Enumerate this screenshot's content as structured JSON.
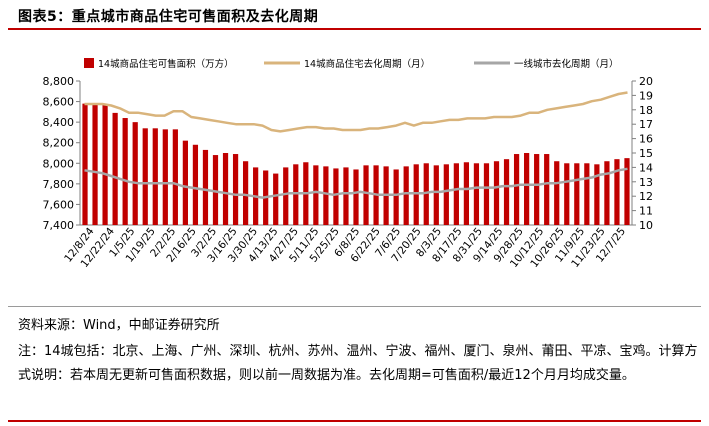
{
  "title": "图表5：重点城市商品住宅可售面积及去化周期",
  "source": "资料来源：Wind，中邮证券研究所",
  "note": "注：14城包括：北京、上海、广州、深圳、杭州、苏州、温州、宁波、福州、厦门、泉州、莆田、平凉、宝鸡。计算方式说明：若本周无更新可售面积数据，则以前一周数据为准。去化周期=可售面积/最近12个月月均成交量。",
  "colors": {
    "bar": "#c00000",
    "line1": "#d9b47c",
    "line2": "#a6a6a6",
    "accent": "#c00000"
  },
  "chart_data": {
    "type": "bar",
    "legend": [
      "14城商品住宅可售面积（万方）",
      "14城商品住宅去化周期（月）",
      "一线城市去化周期（月）"
    ],
    "legend_placement": "top",
    "x_tick_labels": [
      "12/8/24",
      "12/22/24",
      "1/5/25",
      "1/19/25",
      "2/2/25",
      "2/16/25",
      "3/2/25",
      "3/16/25",
      "3/30/25",
      "4/13/25",
      "4/27/25",
      "5/11/25",
      "5/25/25",
      "6/8/25",
      "6/22/25",
      "7/6/25",
      "7/20/25",
      "8/3/25",
      "8/17/25",
      "8/31/25",
      "9/14/25",
      "9/28/25",
      "10/12/25",
      "10/26/25",
      "11/9/25",
      "11/23/25",
      "12/7/25"
    ],
    "y_left": {
      "min": 7400,
      "max": 8800,
      "step": 200,
      "tick_labels": [
        "7,400",
        "7,600",
        "7,800",
        "8,000",
        "8,200",
        "8,400",
        "8,600",
        "8,800"
      ]
    },
    "y_right": {
      "min": 10,
      "max": 20,
      "step": 1,
      "tick_labels": [
        "10",
        "11",
        "12",
        "13",
        "14",
        "15",
        "16",
        "17",
        "18",
        "19",
        "20"
      ]
    },
    "series": [
      {
        "name": "14城商品住宅可售面积（万方）",
        "type": "bar",
        "axis": "left",
        "values": [
          8580,
          8580,
          8570,
          8490,
          8440,
          8400,
          8340,
          8340,
          8330,
          8330,
          8220,
          8180,
          8130,
          8080,
          8100,
          8090,
          8020,
          7960,
          7930,
          7900,
          7960,
          7990,
          8010,
          7980,
          7970,
          7950,
          7960,
          7940,
          7980,
          7980,
          7970,
          7940,
          7970,
          7990,
          8000,
          7980,
          7990,
          8000,
          8010,
          8000,
          8000,
          8020,
          8040,
          8090,
          8100,
          8090,
          8090,
          8020,
          8000,
          8000,
          8000,
          7990,
          8020,
          8040
        ]
      },
      {
        "name": "14城商品住宅去化周期（月）",
        "type": "line",
        "axis": "right",
        "values": [
          18.4,
          18.4,
          18.4,
          18.3,
          18.1,
          17.8,
          17.8,
          17.7,
          17.6,
          17.6,
          17.9,
          17.9,
          17.5,
          17.4,
          17.3,
          17.2,
          17.1,
          17.0,
          17.0,
          17.0,
          16.9,
          16.6,
          16.5,
          16.6,
          16.7,
          16.8,
          16.8,
          16.7,
          16.7,
          16.6,
          16.6,
          16.6,
          16.7,
          16.7,
          16.8,
          16.9,
          17.1,
          16.9,
          17.1,
          17.1,
          17.2,
          17.3,
          17.3,
          17.4,
          17.4,
          17.4,
          17.5,
          17.5,
          17.5,
          17.6,
          17.8,
          17.8,
          18.0,
          18.1
        ]
      },
      {
        "name": "一线城市去化周期（月）",
        "type": "line",
        "axis": "right",
        "values": [
          13.8,
          13.7,
          13.6,
          13.4,
          13.2,
          13.0,
          12.9,
          12.9,
          12.9,
          12.9,
          12.9,
          12.7,
          12.6,
          12.5,
          12.4,
          12.3,
          12.2,
          12.1,
          12.1,
          12.0,
          11.9,
          12.0,
          12.1,
          12.2,
          12.2,
          12.2,
          12.3,
          12.2,
          12.1,
          12.2,
          12.2,
          12.3,
          12.2,
          12.1,
          12.1,
          12.1,
          12.2,
          12.2,
          12.2,
          12.3,
          12.3,
          12.4,
          12.5,
          12.5,
          12.6,
          12.6,
          12.6,
          12.7,
          12.7,
          12.8,
          12.8,
          12.8,
          12.9,
          12.9
        ]
      }
    ],
    "extra_line_tail": {
      "line1": [
        18.2,
        18.3,
        18.4,
        18.6,
        18.7,
        18.9,
        19.1,
        19.2
      ],
      "line2": [
        13.0,
        13.1,
        13.2,
        13.3,
        13.5,
        13.6,
        13.8,
        13.9
      ]
    },
    "extra_bar_tail": [
      8050
    ]
  }
}
